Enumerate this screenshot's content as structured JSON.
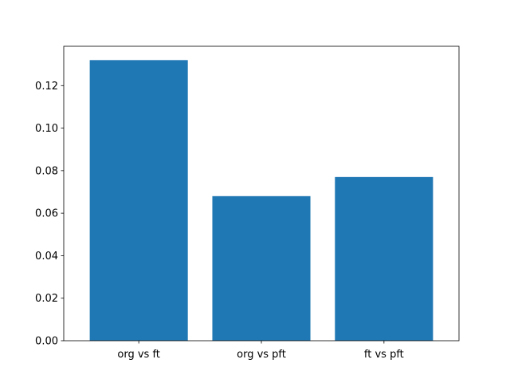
{
  "chart_data": {
    "type": "bar",
    "categories": [
      "org vs ft",
      "org vs pft",
      "ft vs pft"
    ],
    "values": [
      0.132,
      0.068,
      0.077
    ],
    "color": "#1f77b4",
    "ylim": [
      0,
      0.1385
    ],
    "yticks": [
      {
        "value": 0,
        "label": "0.00"
      },
      {
        "value": 0.02,
        "label": "0.02"
      },
      {
        "value": 0.04,
        "label": "0.04"
      },
      {
        "value": 0.06,
        "label": "0.06"
      },
      {
        "value": 0.08,
        "label": "0.08"
      },
      {
        "value": 0.1,
        "label": "0.10"
      },
      {
        "value": 0.12,
        "label": "0.12"
      }
    ]
  }
}
